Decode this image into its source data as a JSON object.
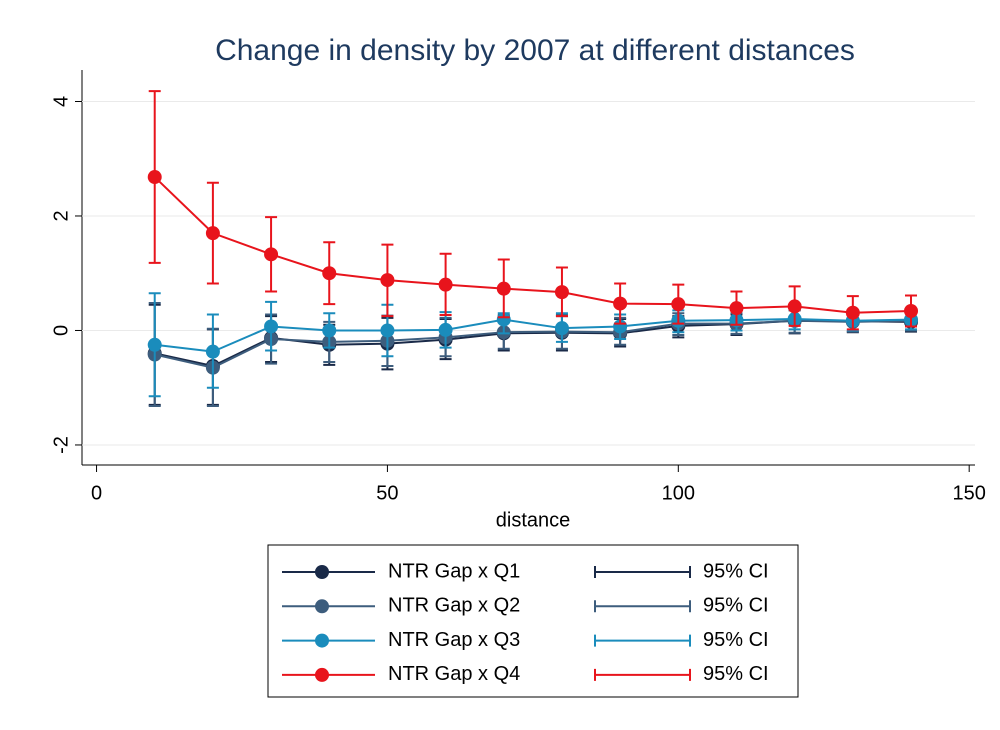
{
  "chart_data": {
    "type": "errorbar-line",
    "title": "Change in density by 2007 at different distances",
    "x_label": "distance",
    "x": [
      10,
      20,
      30,
      40,
      50,
      60,
      70,
      80,
      90,
      100,
      110,
      120,
      130,
      140
    ],
    "xlim": [
      -2.5,
      151
    ],
    "xticks": [
      0,
      50,
      100,
      150
    ],
    "ylim": [
      -2.35,
      4.55
    ],
    "yticks": [
      -2,
      0,
      2,
      4
    ],
    "grid": true,
    "series": [
      {
        "name": "NTR Gap x Q1",
        "ci_name": "95% CI",
        "color": "#1a2a48",
        "values": [
          -0.4,
          -0.62,
          -0.13,
          -0.25,
          -0.23,
          -0.16,
          -0.05,
          -0.04,
          -0.05,
          0.08,
          0.11,
          0.17,
          0.16,
          0.15
        ],
        "ci_low": [
          -1.3,
          -1.3,
          -0.55,
          -0.6,
          -0.68,
          -0.5,
          -0.35,
          -0.35,
          -0.28,
          -0.12,
          -0.08,
          -0.05,
          -0.03,
          -0.02
        ],
        "ci_high": [
          0.45,
          0.02,
          0.25,
          0.1,
          0.22,
          0.2,
          0.25,
          0.25,
          0.2,
          0.25,
          0.28,
          0.35,
          0.32,
          0.3
        ]
      },
      {
        "name": "NTR Gap x Q2",
        "ci_name": "95% CI",
        "color": "#3d5d7d",
        "values": [
          -0.42,
          -0.65,
          -0.15,
          -0.2,
          -0.18,
          -0.12,
          -0.03,
          -0.02,
          -0.03,
          0.12,
          0.12,
          0.17,
          0.15,
          0.17
        ],
        "ci_low": [
          -1.32,
          -1.32,
          -0.58,
          -0.55,
          -0.62,
          -0.45,
          -0.32,
          -0.32,
          -0.25,
          -0.08,
          -0.06,
          -0.04,
          -0.02,
          0.0
        ],
        "ci_high": [
          0.48,
          0.03,
          0.28,
          0.15,
          0.26,
          0.22,
          0.27,
          0.28,
          0.22,
          0.3,
          0.3,
          0.37,
          0.32,
          0.33
        ]
      },
      {
        "name": "NTR Gap x Q3",
        "ci_name": "95% CI",
        "color": "#1a8cbc",
        "values": [
          -0.25,
          -0.37,
          0.07,
          0.0,
          0.0,
          0.01,
          0.19,
          0.04,
          0.07,
          0.17,
          0.18,
          0.2,
          0.17,
          0.19
        ],
        "ci_low": [
          -1.15,
          -1.0,
          -0.35,
          -0.3,
          -0.45,
          -0.3,
          -0.05,
          -0.2,
          -0.15,
          -0.03,
          0.0,
          0.02,
          0.0,
          0.02
        ],
        "ci_high": [
          0.65,
          0.28,
          0.5,
          0.3,
          0.45,
          0.32,
          0.3,
          0.3,
          0.28,
          0.35,
          0.35,
          0.38,
          0.34,
          0.36
        ]
      },
      {
        "name": "NTR Gap x Q4",
        "ci_name": "95% CI",
        "color": "#e8141c",
        "values": [
          2.68,
          1.7,
          1.33,
          1.0,
          0.88,
          0.8,
          0.73,
          0.67,
          0.47,
          0.46,
          0.39,
          0.42,
          0.31,
          0.34
        ],
        "ci_low": [
          1.18,
          0.82,
          0.68,
          0.46,
          0.25,
          0.27,
          0.23,
          0.25,
          0.12,
          0.12,
          0.1,
          0.08,
          0.02,
          0.07
        ],
        "ci_high": [
          4.18,
          2.58,
          1.98,
          1.54,
          1.5,
          1.34,
          1.24,
          1.1,
          0.82,
          0.8,
          0.68,
          0.77,
          0.6,
          0.61
        ]
      }
    ]
  }
}
